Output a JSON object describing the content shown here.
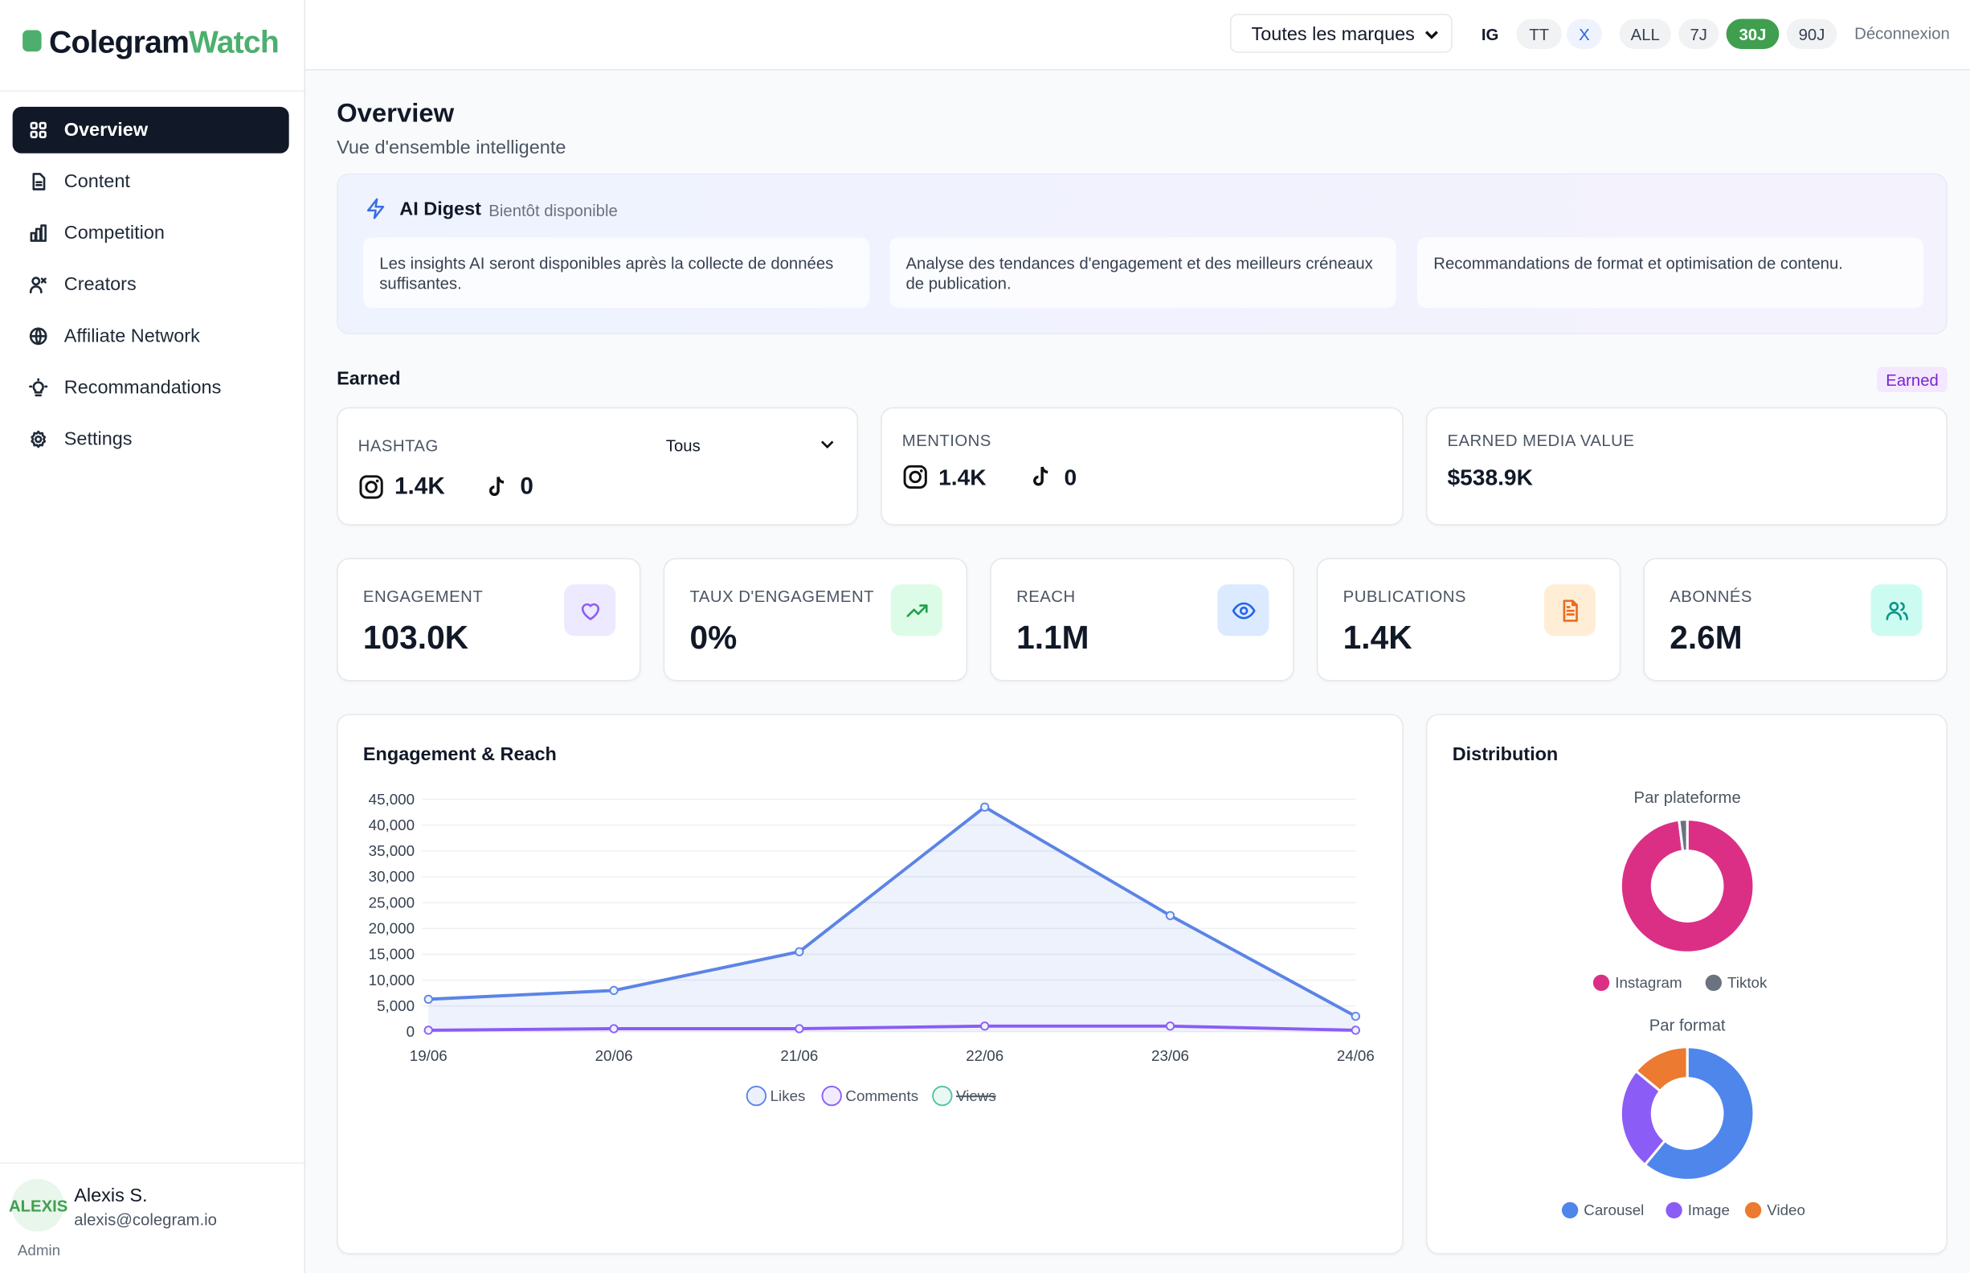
{
  "sidebar": {
    "logo": [
      "Colegram",
      "Watch"
    ],
    "nav": [
      "Overview",
      "Content",
      "Competition",
      "Creators",
      "Affiliate Network",
      "Recommandations",
      "Settings"
    ],
    "user": {
      "avatar": "ALEXIS",
      "name": "Alexis S.",
      "email": "alexis@colegram.io",
      "role": "Admin"
    }
  },
  "topbar": {
    "brand_select": "Toutes les marques",
    "platforms": [
      "IG",
      "TT",
      "X"
    ],
    "periods": [
      "ALL",
      "7J",
      "30J",
      "90J"
    ],
    "logout": "Déconnexion"
  },
  "header": {
    "title": "Overview",
    "subtitle": "Vue d'ensemble intelligente"
  },
  "ai_digest": {
    "title": "AI Digest",
    "badge": "Bientôt disponible",
    "cards": [
      "Les insights AI seront disponibles après la collecte de données suffisantes.",
      "Analyse des tendances d'engagement et des meilleurs créneaux de publication.",
      "Recommandations de format et optimisation de contenu."
    ]
  },
  "earned": {
    "title": "Earned",
    "badge": "Earned",
    "hashtag": {
      "label": "HASHTAG",
      "filter": "Tous",
      "instagram": "1.4K",
      "tiktok": "0"
    },
    "mentions": {
      "label": "MENTIONS",
      "instagram": "1.4K",
      "tiktok": "0"
    },
    "emv": {
      "label": "EARNED MEDIA VALUE",
      "value": "$538.9K"
    }
  },
  "kpis": [
    {
      "label": "ENGAGEMENT",
      "value": "103.0K"
    },
    {
      "label": "TAUX D'ENGAGEMENT",
      "value": "0%"
    },
    {
      "label": "REACH",
      "value": "1.1M"
    },
    {
      "label": "PUBLICATIONS",
      "value": "1.4K"
    },
    {
      "label": "ABONNÉS",
      "value": "2.6M"
    }
  ],
  "distribution_title": "Distribution",
  "chart_data": [
    {
      "type": "line",
      "title": "Engagement & Reach",
      "categories": [
        "19/06",
        "20/06",
        "21/06",
        "22/06",
        "23/06",
        "24/06"
      ],
      "series": [
        {
          "name": "Likes",
          "color": "#5b84e6",
          "fill": true,
          "values": [
            6300,
            8000,
            15500,
            43500,
            22500,
            3000
          ]
        },
        {
          "name": "Comments",
          "color": "#8b5cf6",
          "values": [
            300,
            600,
            600,
            1100,
            1100,
            300
          ]
        },
        {
          "name": "Views",
          "color": "#4fc3a1",
          "hidden": true,
          "values": [
            null,
            null,
            null,
            null,
            null,
            null
          ]
        }
      ],
      "ylim": [
        0,
        45000
      ],
      "yticks": [
        0,
        {
          "value": 5000,
          "label": "5,000"
        },
        {
          "value": 10000,
          "label": "10,000"
        },
        {
          "value": 15000,
          "label": "15,000"
        },
        {
          "value": 20000,
          "label": "20,000"
        },
        {
          "value": 25000,
          "label": "25,000"
        },
        {
          "value": 30000,
          "label": "30,000"
        },
        {
          "value": 35000,
          "label": "35,000"
        },
        {
          "value": 40000,
          "label": "40,000"
        },
        {
          "value": 45000,
          "label": "45,000"
        }
      ],
      "grid": true
    },
    {
      "type": "donut",
      "title": "Par plateforme",
      "categories": [
        "Instagram",
        "Tiktok"
      ],
      "values": [
        98,
        2
      ],
      "colors": [
        "#db2f86",
        "#6b7280"
      ]
    },
    {
      "type": "donut",
      "title": "Par format",
      "categories": [
        "Carousel",
        "Image",
        "Video"
      ],
      "values": [
        61,
        25,
        14
      ],
      "colors": [
        "#4f86ec",
        "#8b5cf6",
        "#ec7a30"
      ]
    }
  ]
}
